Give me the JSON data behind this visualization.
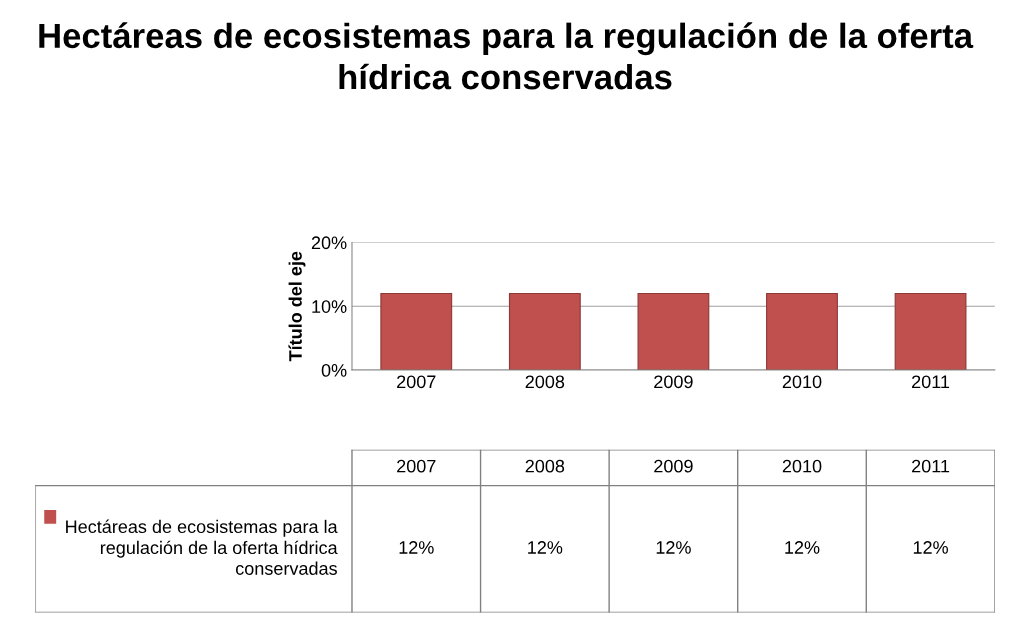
{
  "chart_data": {
    "type": "bar",
    "title": "Hectáreas de ecosistemas para la regulación de la oferta hídrica conservadas",
    "ylabel": "Título del eje",
    "categories": [
      "2007",
      "2008",
      "2009",
      "2010",
      "2011"
    ],
    "series": [
      {
        "name": "Hectáreas de ecosistemas para la regulación de la oferta hídrica conservadas",
        "color": "#c0504d",
        "values": [
          12,
          12,
          12,
          12,
          12
        ],
        "value_labels": [
          "12%",
          "12%",
          "12%",
          "12%",
          "12%"
        ]
      }
    ],
    "ylim": [
      0,
      20
    ],
    "yticks": [
      {
        "value": 0,
        "label": "0%"
      },
      {
        "value": 10,
        "label": "10%"
      },
      {
        "value": 20,
        "label": "20%"
      }
    ],
    "grid": "y"
  }
}
